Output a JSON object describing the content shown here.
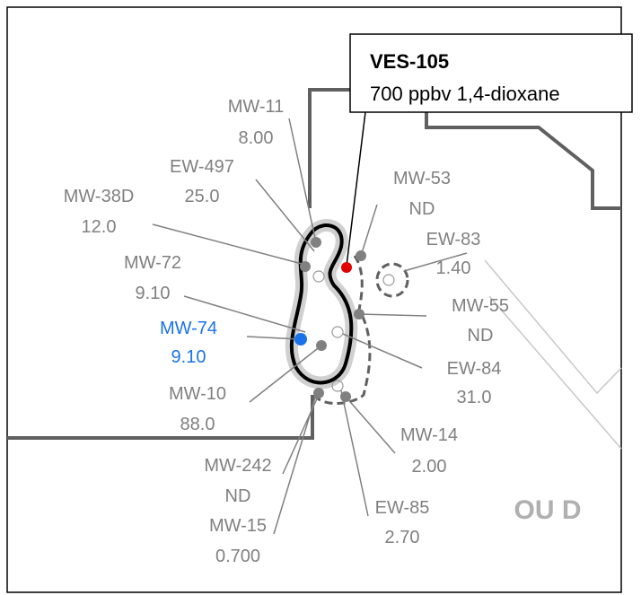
{
  "callout": {
    "title": "VES-105",
    "text": "700 ppbv 1,4-dioxane"
  },
  "wells": [
    {
      "name": "MW-11",
      "value": "8.00"
    },
    {
      "name": "EW-497",
      "value": "25.0"
    },
    {
      "name": "MW-38D",
      "value": "12.0"
    },
    {
      "name": "MW-72",
      "value": "9.10"
    },
    {
      "name": "MW-74",
      "value": "9.10"
    },
    {
      "name": "MW-10",
      "value": "88.0"
    },
    {
      "name": "MW-242",
      "value": "ND"
    },
    {
      "name": "MW-15",
      "value": "0.700"
    },
    {
      "name": "MW-53",
      "value": "ND"
    },
    {
      "name": "EW-83",
      "value": "1.40"
    },
    {
      "name": "MW-55",
      "value": "ND"
    },
    {
      "name": "EW-84",
      "value": "31.0"
    },
    {
      "name": "MW-14",
      "value": "2.00"
    },
    {
      "name": "EW-85",
      "value": "2.70"
    }
  ],
  "region_label": "OU D"
}
